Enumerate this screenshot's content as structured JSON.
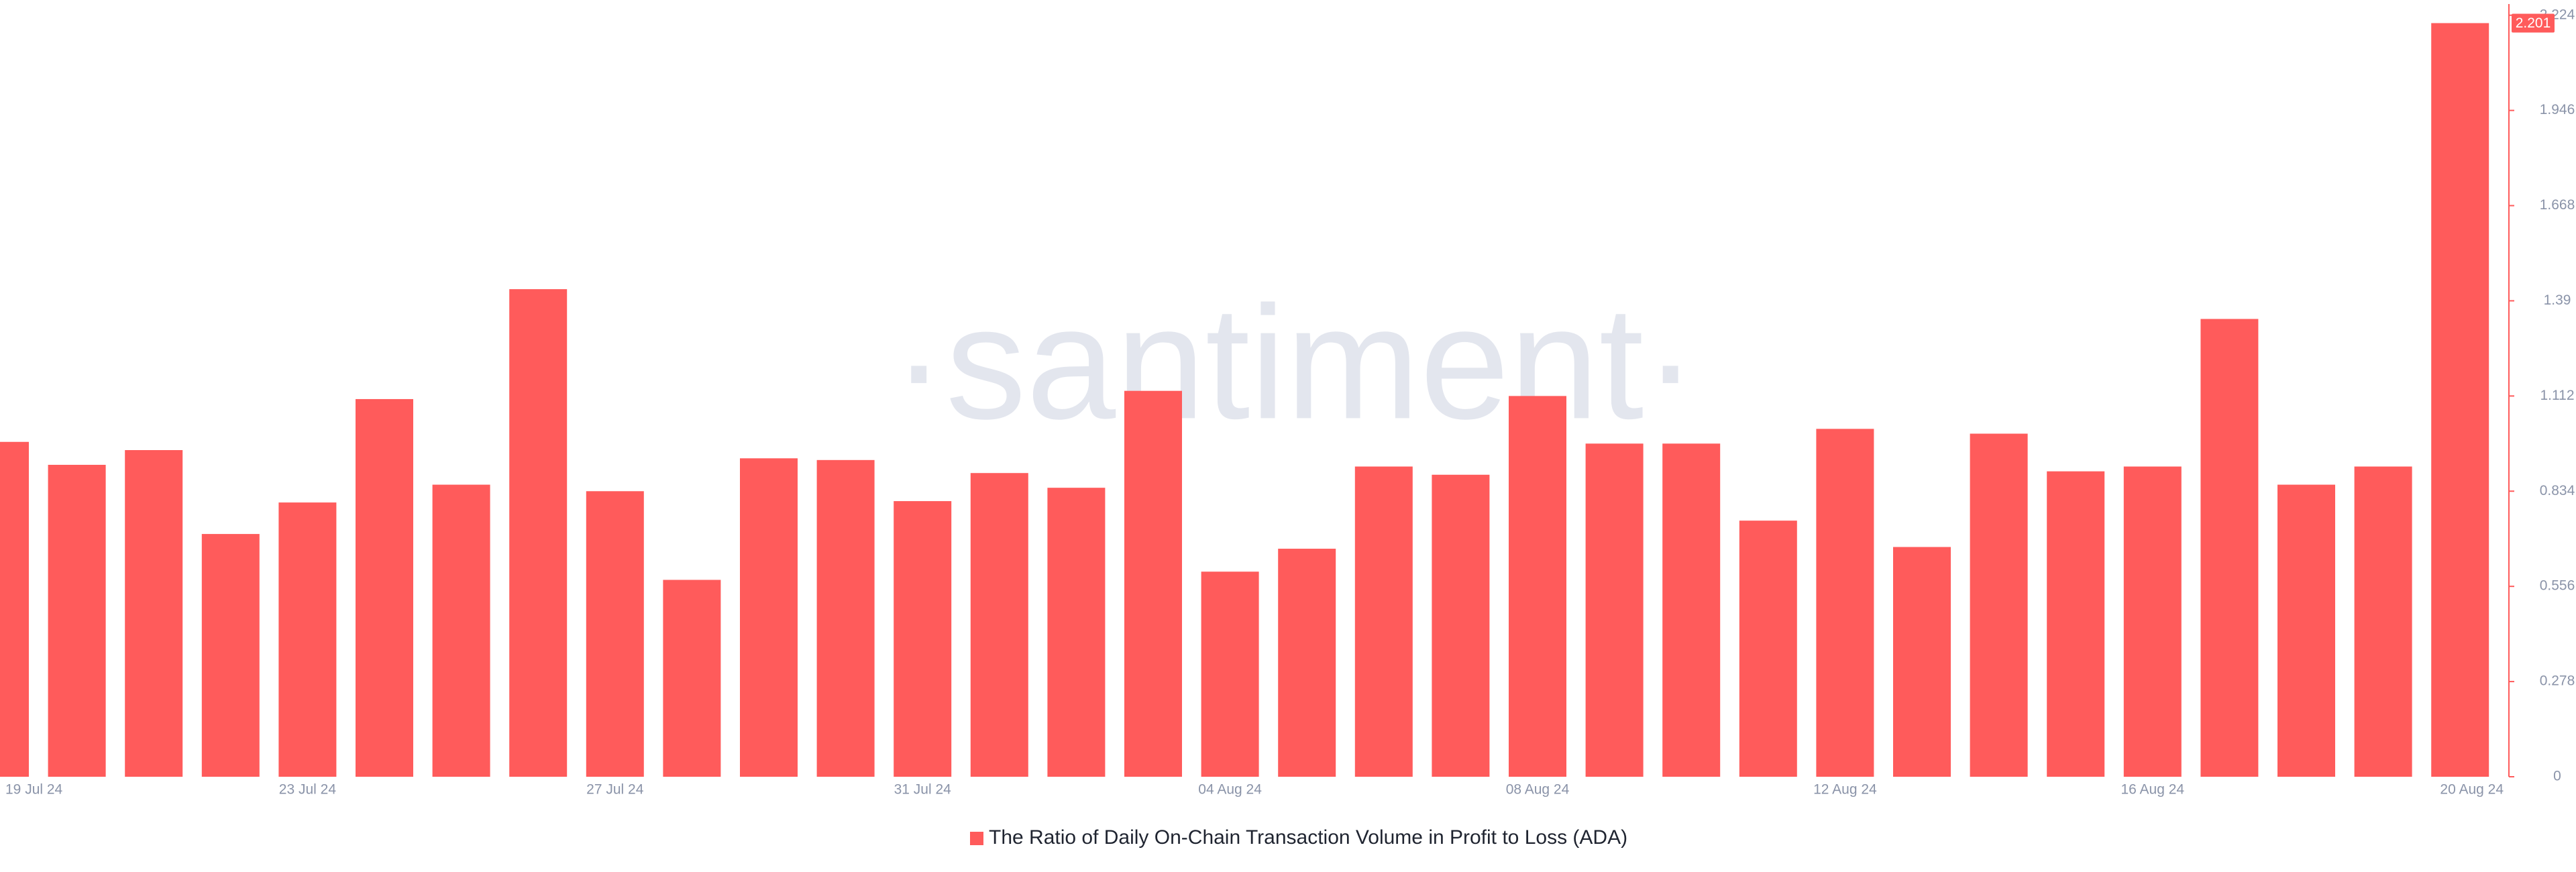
{
  "chart_data": {
    "type": "bar",
    "watermark": "·santiment·",
    "legend": "The Ratio of Daily On-Chain Transaction Volume in Profit to Loss (ADA)",
    "color": "#ff5b5b",
    "categories": [
      "19 Jul 24",
      null,
      null,
      null,
      "23 Jul 24",
      null,
      null,
      null,
      "27 Jul 24",
      null,
      null,
      null,
      "31 Jul 24",
      null,
      null,
      null,
      "04 Aug 24",
      null,
      null,
      null,
      "08 Aug 24",
      null,
      null,
      null,
      "12 Aug 24",
      null,
      null,
      null,
      "16 Aug 24",
      null,
      null,
      null,
      "20 Aug 24"
    ],
    "values": [
      0.978,
      0.911,
      0.954,
      0.709,
      0.801,
      1.103,
      0.853,
      1.424,
      0.834,
      0.575,
      0.93,
      0.925,
      0.805,
      0.887,
      0.844,
      1.127,
      0.599,
      0.666,
      0.906,
      0.882,
      1.112,
      0.973,
      0.973,
      0.748,
      1.016,
      0.671,
      1.002,
      0.892,
      0.906,
      1.337,
      0.853,
      0.906,
      2.201
    ],
    "ylim": [
      0,
      2.245
    ],
    "yticks": [
      0,
      0.278,
      0.556,
      0.834,
      1.112,
      1.39,
      1.668,
      1.946,
      2.224
    ],
    "y_axis_side": "right"
  }
}
